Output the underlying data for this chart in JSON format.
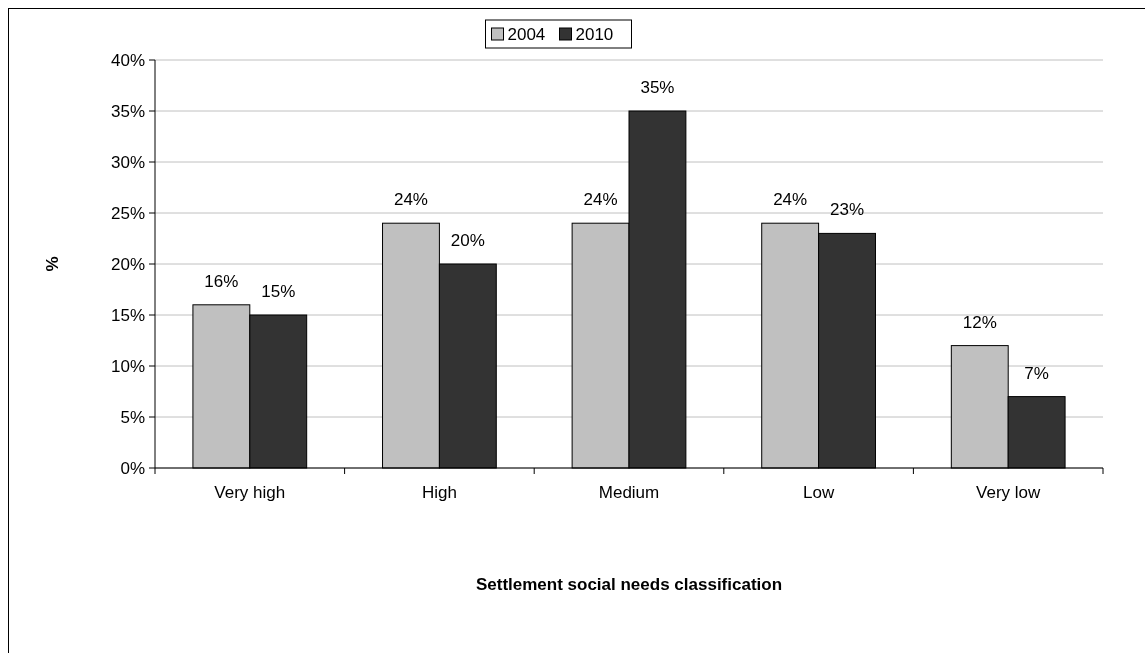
{
  "chart_data": {
    "type": "bar",
    "xlabel": "Settlement social needs classification",
    "ylabel": "%",
    "categories": [
      "Very high",
      "High",
      "Medium",
      "Low",
      "Very low"
    ],
    "series": [
      {
        "name": "2004",
        "color": "#c0c0c0",
        "values": [
          16,
          24,
          24,
          24,
          12
        ],
        "value_labels": [
          "16%",
          "24%",
          "24%",
          "24%",
          "12%"
        ]
      },
      {
        "name": "2010",
        "color": "#333333",
        "values": [
          15,
          20,
          35,
          23,
          7
        ],
        "value_labels": [
          "15%",
          "20%",
          "35%",
          "23%",
          "7%"
        ]
      }
    ],
    "ylim": [
      0,
      40
    ],
    "yticks": [
      {
        "value": 0,
        "label": "0%"
      },
      {
        "value": 5,
        "label": "5%"
      },
      {
        "value": 10,
        "label": "10%"
      },
      {
        "value": 15,
        "label": "15%"
      },
      {
        "value": 20,
        "label": "20%"
      },
      {
        "value": 25,
        "label": "25%"
      },
      {
        "value": 30,
        "label": "30%"
      },
      {
        "value": 35,
        "label": "35%"
      },
      {
        "value": 40,
        "label": "40%"
      }
    ],
    "grid": "y",
    "legend": "top"
  }
}
